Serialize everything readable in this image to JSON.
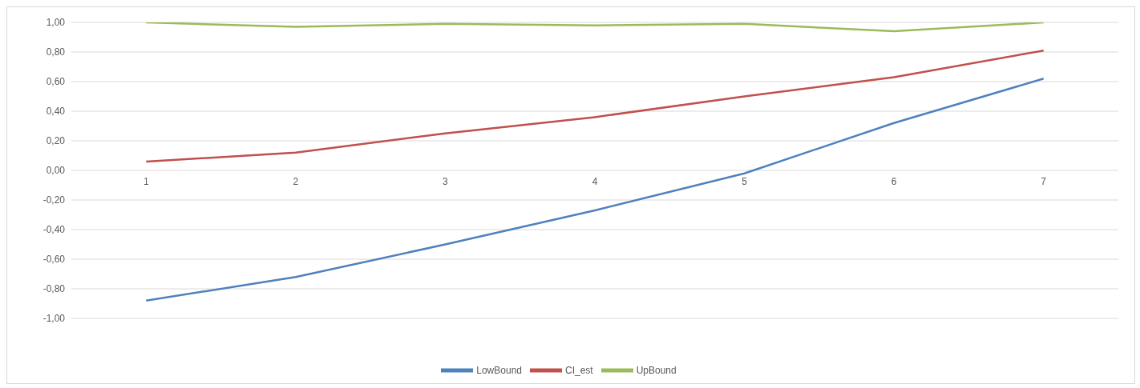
{
  "chart_data": {
    "type": "line",
    "categories": [
      "1",
      "2",
      "3",
      "4",
      "5",
      "6",
      "7"
    ],
    "series": [
      {
        "name": "LowBound",
        "color": "#4f81bd",
        "values": [
          -0.88,
          -0.72,
          -0.5,
          -0.27,
          -0.02,
          0.32,
          0.62
        ]
      },
      {
        "name": "CI_est",
        "color": "#c0504d",
        "values": [
          0.06,
          0.12,
          0.25,
          0.36,
          0.5,
          0.63,
          0.81
        ]
      },
      {
        "name": "UpBound",
        "color": "#9bbb59",
        "values": [
          1.0,
          0.97,
          0.99,
          0.98,
          0.99,
          0.94,
          1.0
        ]
      }
    ],
    "ylim": [
      -1,
      1
    ],
    "yticks": [
      {
        "value": -1,
        "label": "-1,00"
      },
      {
        "value": -0.8,
        "label": "-0,80"
      },
      {
        "value": -0.6,
        "label": "-0,60"
      },
      {
        "value": -0.4,
        "label": "-0,40"
      },
      {
        "value": -0.2,
        "label": "-0,20"
      },
      {
        "value": 0,
        "label": "0,00"
      },
      {
        "value": 0.2,
        "label": "0,20"
      },
      {
        "value": 0.4,
        "label": "0,40"
      },
      {
        "value": 0.6,
        "label": "0,60"
      },
      {
        "value": 0.8,
        "label": "0,80"
      },
      {
        "value": 1,
        "label": "1,00"
      }
    ],
    "grid": "y",
    "legend": "bottom",
    "marker": "none",
    "line_style": "solid"
  }
}
